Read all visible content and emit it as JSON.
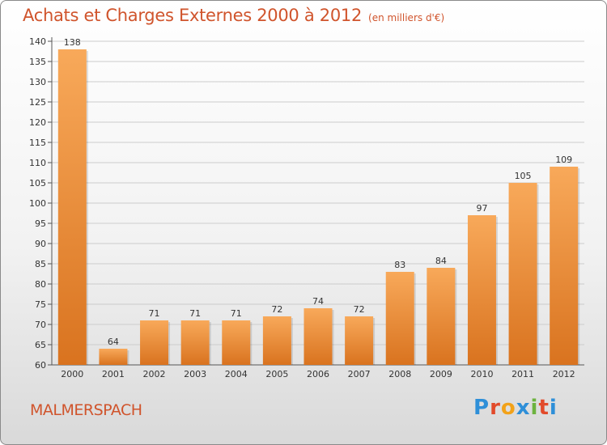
{
  "header": {
    "title": "Achats et Charges Externes 2000 à 2012",
    "subtitle": "(en milliers d'€)"
  },
  "footer": {
    "commune": "MALMERSPACH",
    "logo": {
      "letters": [
        "P",
        "r",
        "o",
        "x",
        "i",
        "t",
        "i"
      ],
      "colors": [
        "#2e8fd8",
        "#e24a2a",
        "#f2a219",
        "#2e8fd8",
        "#6db33f",
        "#e24a2a",
        "#2e8fd8"
      ]
    }
  },
  "chart_data": {
    "type": "bar",
    "title": "Achats et Charges Externes 2000 à 2012",
    "subtitle": "(en milliers d'€)",
    "categories": [
      "2000",
      "2001",
      "2002",
      "2003",
      "2004",
      "2005",
      "2006",
      "2007",
      "2008",
      "2009",
      "2010",
      "2011",
      "2012"
    ],
    "values": [
      138,
      64,
      71,
      71,
      71,
      72,
      74,
      72,
      83,
      84,
      97,
      105,
      109
    ],
    "ylim": [
      60,
      140
    ],
    "yticks": [
      60,
      65,
      70,
      75,
      80,
      85,
      90,
      95,
      100,
      105,
      110,
      115,
      120,
      125,
      130,
      135,
      140
    ],
    "grid": true,
    "legend": "none",
    "colors": {
      "bar_top": "#f8a95a",
      "bar_bottom": "#d9731f",
      "grid": "#cccccc",
      "axis": "#555555"
    }
  }
}
